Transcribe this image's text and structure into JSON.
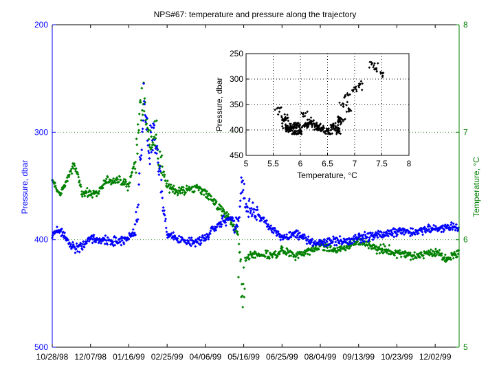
{
  "colors": {
    "pressure": "#0000ff",
    "temperature": "#008000",
    "inset": "#000000",
    "grid": "#3a8a3a",
    "axis": "#000000"
  },
  "chart_data": [
    {
      "type": "scatter",
      "title": "NPS#67: temperature and pressure along the trajectory",
      "xlabel": "",
      "ylabel": "Pressure, dbar",
      "ylabel_right": "Temperature, °C",
      "x_tick_labels": [
        "10/28/98",
        "12/07/98",
        "01/16/99",
        "02/25/99",
        "04/06/99",
        "05/16/99",
        "06/25/99",
        "08/04/99",
        "09/13/99",
        "10/23/99",
        "12/02/99"
      ],
      "x_ticks": [
        "1998-10-28",
        "1998-12-07",
        "1999-01-16",
        "1999-02-25",
        "1999-04-06",
        "1999-05-16",
        "1999-06-25",
        "1999-08-04",
        "1999-09-13",
        "1999-10-23",
        "1999-12-02"
      ],
      "xlim": [
        "1998-10-28",
        "1999-12-27"
      ],
      "ylim": [
        200,
        500
      ],
      "y_reversed": true,
      "y_ticks": [
        200,
        300,
        400,
        500
      ],
      "ylim_right": [
        5,
        8
      ],
      "y_ticks_right": [
        5,
        6,
        7,
        8
      ],
      "grid": true,
      "series": [
        {
          "name": "Pressure, dbar",
          "axis": "left",
          "x": [
            "1998-10-28",
            "1998-11-05",
            "1998-11-12",
            "1998-11-20",
            "1998-11-28",
            "1998-12-05",
            "1998-12-15",
            "1998-12-25",
            "1999-01-05",
            "1999-01-16",
            "1999-01-24",
            "1999-01-28",
            "1999-02-01",
            "1999-02-06",
            "1999-02-12",
            "1999-02-18",
            "1999-02-25",
            "1999-03-10",
            "1999-03-25",
            "1999-04-06",
            "1999-04-20",
            "1999-05-01",
            "1999-05-10",
            "1999-05-14",
            "1999-05-20",
            "1999-06-01",
            "1999-06-15",
            "1999-06-25",
            "1999-07-10",
            "1999-07-25",
            "1999-08-04",
            "1999-08-20",
            "1999-09-05",
            "1999-09-13",
            "1999-10-01",
            "1999-10-23",
            "1999-11-10",
            "1999-12-02",
            "1999-12-15",
            "1999-12-27"
          ],
          "y": [
            395,
            390,
            400,
            408,
            407,
            400,
            398,
            402,
            403,
            398,
            390,
            330,
            270,
            320,
            300,
            345,
            395,
            400,
            403,
            398,
            385,
            380,
            385,
            345,
            370,
            378,
            390,
            398,
            395,
            402,
            403,
            400,
            402,
            398,
            396,
            393,
            392,
            390,
            388,
            390
          ]
        },
        {
          "name": "Temperature, °C",
          "axis": "right",
          "x": [
            "1998-10-28",
            "1998-11-05",
            "1998-11-12",
            "1998-11-20",
            "1998-11-28",
            "1998-12-05",
            "1998-12-15",
            "1998-12-25",
            "1999-01-05",
            "1999-01-16",
            "1999-01-24",
            "1999-01-28",
            "1999-02-01",
            "1999-02-06",
            "1999-02-12",
            "1999-02-18",
            "1999-02-25",
            "1999-03-10",
            "1999-03-25",
            "1999-04-06",
            "1999-04-20",
            "1999-05-01",
            "1999-05-10",
            "1999-05-14",
            "1999-05-20",
            "1999-06-01",
            "1999-06-15",
            "1999-06-25",
            "1999-07-10",
            "1999-07-25",
            "1999-08-04",
            "1999-08-20",
            "1999-09-05",
            "1999-09-13",
            "1999-10-01",
            "1999-10-23",
            "1999-11-10",
            "1999-12-02",
            "1999-12-15",
            "1999-12-27"
          ],
          "y": [
            6.55,
            6.42,
            6.55,
            6.7,
            6.45,
            6.42,
            6.45,
            6.55,
            6.55,
            6.5,
            6.8,
            7.2,
            7.35,
            6.9,
            7.0,
            6.7,
            6.5,
            6.45,
            6.48,
            6.45,
            6.3,
            6.2,
            6.05,
            5.7,
            5.85,
            5.85,
            5.85,
            5.9,
            5.85,
            5.9,
            5.95,
            5.9,
            5.95,
            6.0,
            5.92,
            5.88,
            5.85,
            5.88,
            5.82,
            5.88
          ]
        }
      ]
    },
    {
      "type": "scatter",
      "title": "",
      "xlabel": "Temperature, °C",
      "ylabel": "Pressure, dbar",
      "xlim": [
        5,
        8
      ],
      "ylim": [
        250,
        450
      ],
      "y_reversed": true,
      "x_ticks": [
        5,
        5.5,
        6,
        6.5,
        7,
        7.5,
        8
      ],
      "y_ticks": [
        250,
        300,
        350,
        400,
        450
      ],
      "grid": true,
      "series": [
        {
          "name": "",
          "x": [
            5.6,
            5.7,
            5.75,
            5.8,
            5.85,
            5.9,
            5.95,
            6.0,
            6.05,
            6.1,
            6.2,
            6.3,
            6.4,
            6.5,
            6.6,
            6.7,
            6.75,
            6.8,
            6.85,
            6.9,
            7.0,
            7.1,
            7.3,
            7.4,
            7.5
          ],
          "y": [
            360,
            380,
            395,
            400,
            395,
            405,
            390,
            405,
            370,
            390,
            385,
            395,
            400,
            405,
            395,
            400,
            380,
            350,
            330,
            360,
            320,
            310,
            270,
            280,
            290
          ]
        }
      ]
    }
  ]
}
